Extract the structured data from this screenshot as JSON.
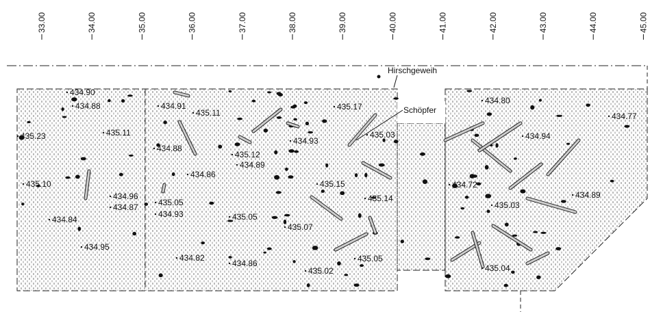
{
  "grid_labels": [
    "33.00",
    "34.00",
    "35.00",
    "36.00",
    "37.00",
    "38.00",
    "39.00",
    "40.00",
    "41.00",
    "42.00",
    "43.00",
    "44.00",
    "45.00"
  ],
  "annotations": {
    "antler": "Hirschgeweih",
    "scoop": "Schöpfer"
  },
  "elevations": [
    "434.90",
    "434.88",
    "434.91",
    "435.11",
    "435.23",
    "435.11",
    "434.88",
    "435.12",
    "434.89",
    "434.93",
    "435.17",
    "435.03",
    "434.80",
    "434.77",
    "434.94",
    "435.10",
    "434.86",
    "434.96",
    "434.87",
    "435.05",
    "434.93",
    "435.05",
    "435.15",
    "435.14",
    "434.72",
    "435.03",
    "434.89",
    "434.84",
    "435.07",
    "434.95",
    "434.82",
    "434.86",
    "435.02",
    "435.05",
    "435.04"
  ]
}
